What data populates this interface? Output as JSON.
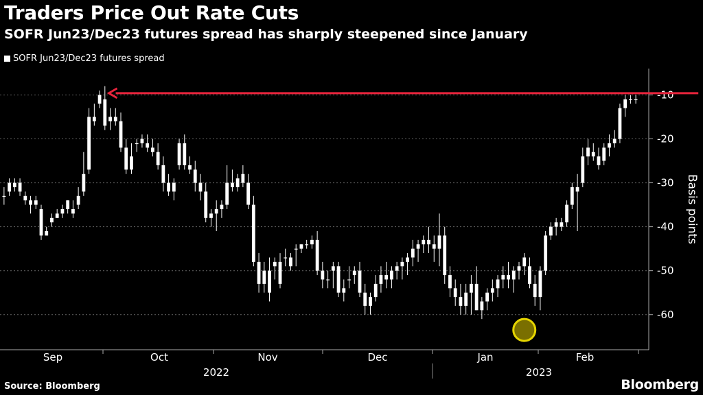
{
  "header": {
    "title": "Traders Price Out Rate Cuts",
    "subtitle": "SOFR Jun23/Dec23 futures spread has sharply steepened since January"
  },
  "legend": {
    "label": "SOFR Jun23/Dec23 futures spread"
  },
  "footer": {
    "source": "Source: Bloomberg",
    "brand": "Bloomberg"
  },
  "colors": {
    "background": "#000000",
    "candle": "#ffffff",
    "grid": "#666666",
    "arrow": "#e8243c",
    "marker": "#e5d400"
  },
  "chart_data": {
    "type": "candlestick",
    "title": "Traders Price Out Rate Cuts",
    "ylabel": "Basis points",
    "ylim": [
      -68,
      -4
    ],
    "y_ticks": [
      -10,
      -20,
      -30,
      -40,
      -50,
      -60
    ],
    "y_tick_labels": [
      "-10",
      "-20",
      "-30",
      "-40",
      "-50",
      "-60"
    ],
    "y_axis_side": "right",
    "y_axis_inverted": true,
    "x_month_labels": [
      "Sep",
      "Oct",
      "Nov",
      "Dec",
      "Jan",
      "Feb"
    ],
    "x_year_labels": [
      "2022",
      "2023"
    ],
    "annotations": {
      "arrow": {
        "from_index": 130,
        "to_index": 20,
        "value": -9.6,
        "direction": "left"
      },
      "marker": {
        "index": 98,
        "value": -63.5
      }
    },
    "series": [
      {
        "name": "SOFR Jun23/Dec23 futures spread",
        "ohlc": [
          [
            -33,
            -31,
            -35,
            -33
          ],
          [
            -32,
            -29,
            -33,
            -30
          ],
          [
            -31,
            -29,
            -32,
            -30
          ],
          [
            -30,
            -29,
            -33,
            -32
          ],
          [
            -33,
            -32,
            -35,
            -34
          ],
          [
            -34,
            -33,
            -37,
            -35
          ],
          [
            -35,
            -33,
            -36,
            -34
          ],
          [
            -36,
            -35,
            -43,
            -42
          ],
          [
            -42,
            -40,
            -42,
            -41
          ],
          [
            -39,
            -37,
            -40,
            -38
          ],
          [
            -38,
            -36,
            -38,
            -37
          ],
          [
            -37,
            -35,
            -38,
            -36
          ],
          [
            -36,
            -34,
            -37,
            -34
          ],
          [
            -36,
            -34,
            -38,
            -37
          ],
          [
            -35,
            -31,
            -36,
            -33
          ],
          [
            -32,
            -23,
            -33,
            -28
          ],
          [
            -27,
            -13,
            -28,
            -15
          ],
          [
            -15,
            -12,
            -17,
            -16
          ],
          [
            -12,
            -9,
            -13,
            -10
          ],
          [
            -11,
            -8,
            -18,
            -17
          ],
          [
            -16,
            -13,
            -18,
            -15
          ],
          [
            -15,
            -13,
            -17,
            -16
          ],
          [
            -16,
            -14,
            -23,
            -22
          ],
          [
            -22,
            -20,
            -28,
            -27
          ],
          [
            -27,
            -21,
            -28,
            -24
          ],
          [
            -21,
            -20,
            -23,
            -21
          ],
          [
            -20,
            -19,
            -22,
            -21
          ],
          [
            -21,
            -19,
            -23,
            -22
          ],
          [
            -22,
            -20,
            -24,
            -23
          ],
          [
            -23,
            -21,
            -27,
            -26
          ],
          [
            -26,
            -24,
            -32,
            -30
          ],
          [
            -30,
            -28,
            -33,
            -32
          ],
          [
            -32,
            -29,
            -34,
            -30
          ],
          [
            -26,
            -20,
            -27,
            -21
          ],
          [
            -21,
            -19,
            -27,
            -26
          ],
          [
            -26,
            -24,
            -28,
            -27
          ],
          [
            -27,
            -25,
            -32,
            -30
          ],
          [
            -30,
            -28,
            -34,
            -32
          ],
          [
            -32,
            -30,
            -39,
            -38
          ],
          [
            -38,
            -36,
            -40,
            -37
          ],
          [
            -37,
            -34,
            -41,
            -36
          ],
          [
            -36,
            -34,
            -38,
            -35
          ],
          [
            -35,
            -26,
            -36,
            -30
          ],
          [
            -30,
            -27,
            -32,
            -31
          ],
          [
            -31,
            -28,
            -32,
            -29
          ],
          [
            -28,
            -26,
            -31,
            -30
          ],
          [
            -30,
            -28,
            -36,
            -35
          ],
          [
            -35,
            -33,
            -49,
            -48
          ],
          [
            -48,
            -46,
            -55,
            -53
          ],
          [
            -53,
            -48,
            -55,
            -50
          ],
          [
            -50,
            -47,
            -57,
            -55
          ],
          [
            -49,
            -47,
            -52,
            -48
          ],
          [
            -48,
            -46,
            -54,
            -53
          ],
          [
            -47,
            -45,
            -49,
            -47
          ],
          [
            -47,
            -46,
            -50,
            -49
          ],
          [
            -45,
            -44,
            -49,
            -45
          ],
          [
            -45,
            -44,
            -46,
            -44
          ],
          [
            -44,
            -43,
            -45,
            -44
          ],
          [
            -44,
            -42,
            -45,
            -43
          ],
          [
            -43,
            -41,
            -51,
            -50
          ],
          [
            -50,
            -48,
            -54,
            -52
          ],
          [
            -52,
            -50,
            -54,
            -52
          ],
          [
            -50,
            -48,
            -54,
            -49
          ],
          [
            -49,
            -48,
            -56,
            -55
          ],
          [
            -55,
            -52,
            -57,
            -54
          ],
          [
            -52,
            -49,
            -54,
            -52
          ],
          [
            -51,
            -49,
            -53,
            -50
          ],
          [
            -50,
            -48,
            -56,
            -55
          ],
          [
            -55,
            -53,
            -60,
            -58
          ],
          [
            -58,
            -55,
            -60,
            -56
          ],
          [
            -56,
            -51,
            -57,
            -53
          ],
          [
            -53,
            -49,
            -55,
            -51
          ],
          [
            -51,
            -48,
            -54,
            -52
          ],
          [
            -52,
            -49,
            -54,
            -50
          ],
          [
            -50,
            -48,
            -52,
            -49
          ],
          [
            -49,
            -47,
            -52,
            -48
          ],
          [
            -48,
            -46,
            -51,
            -47
          ],
          [
            -47,
            -43,
            -49,
            -45
          ],
          [
            -45,
            -43,
            -48,
            -44
          ],
          [
            -44,
            -42,
            -46,
            -43
          ],
          [
            -43,
            -40,
            -46,
            -44
          ],
          [
            -44,
            -42,
            -48,
            -45
          ],
          [
            -45,
            -37,
            -49,
            -42
          ],
          [
            -42,
            -40,
            -53,
            -51
          ],
          [
            -51,
            -49,
            -56,
            -54
          ],
          [
            -54,
            -52,
            -58,
            -56
          ],
          [
            -56,
            -53,
            -60,
            -58
          ],
          [
            -58,
            -53,
            -60,
            -55
          ],
          [
            -55,
            -51,
            -60,
            -53
          ],
          [
            -53,
            -49,
            -59,
            -59
          ],
          [
            -59,
            -56,
            -61,
            -57
          ],
          [
            -57,
            -54,
            -59,
            -55
          ],
          [
            -54,
            -52,
            -57,
            -55
          ],
          [
            -54,
            -51,
            -56,
            -52
          ],
          [
            -52,
            -49,
            -54,
            -51
          ],
          [
            -51,
            -48,
            -54,
            -52
          ],
          [
            -52,
            -49,
            -55,
            -50
          ],
          [
            -50,
            -48,
            -52,
            -49
          ],
          [
            -49,
            -46,
            -51,
            -47
          ],
          [
            -49,
            -47,
            -54,
            -53
          ],
          [
            -53,
            -51,
            -58,
            -56
          ],
          [
            -56,
            -49,
            -59,
            -50
          ],
          [
            -50,
            -41,
            -51,
            -42
          ],
          [
            -42,
            -39,
            -43,
            -40
          ],
          [
            -40,
            -38,
            -42,
            -39
          ],
          [
            -39,
            -38,
            -41,
            -40
          ],
          [
            -39,
            -34,
            -40,
            -35
          ],
          [
            -35,
            -30,
            -36,
            -31
          ],
          [
            -31,
            -28,
            -41,
            -32
          ],
          [
            -30,
            -22,
            -31,
            -24
          ],
          [
            -24,
            -20,
            -26,
            -22
          ],
          [
            -23,
            -21,
            -25,
            -24
          ],
          [
            -24,
            -22,
            -27,
            -26
          ],
          [
            -25,
            -21,
            -26,
            -22
          ],
          [
            -22,
            -19,
            -24,
            -21
          ],
          [
            -21,
            -18,
            -22,
            -20
          ],
          [
            -20,
            -12,
            -21,
            -13
          ],
          [
            -13,
            -10,
            -15,
            -11
          ],
          [
            -11,
            -10,
            -12,
            -11
          ],
          [
            -11,
            -10,
            -12,
            -11
          ]
        ]
      }
    ]
  }
}
